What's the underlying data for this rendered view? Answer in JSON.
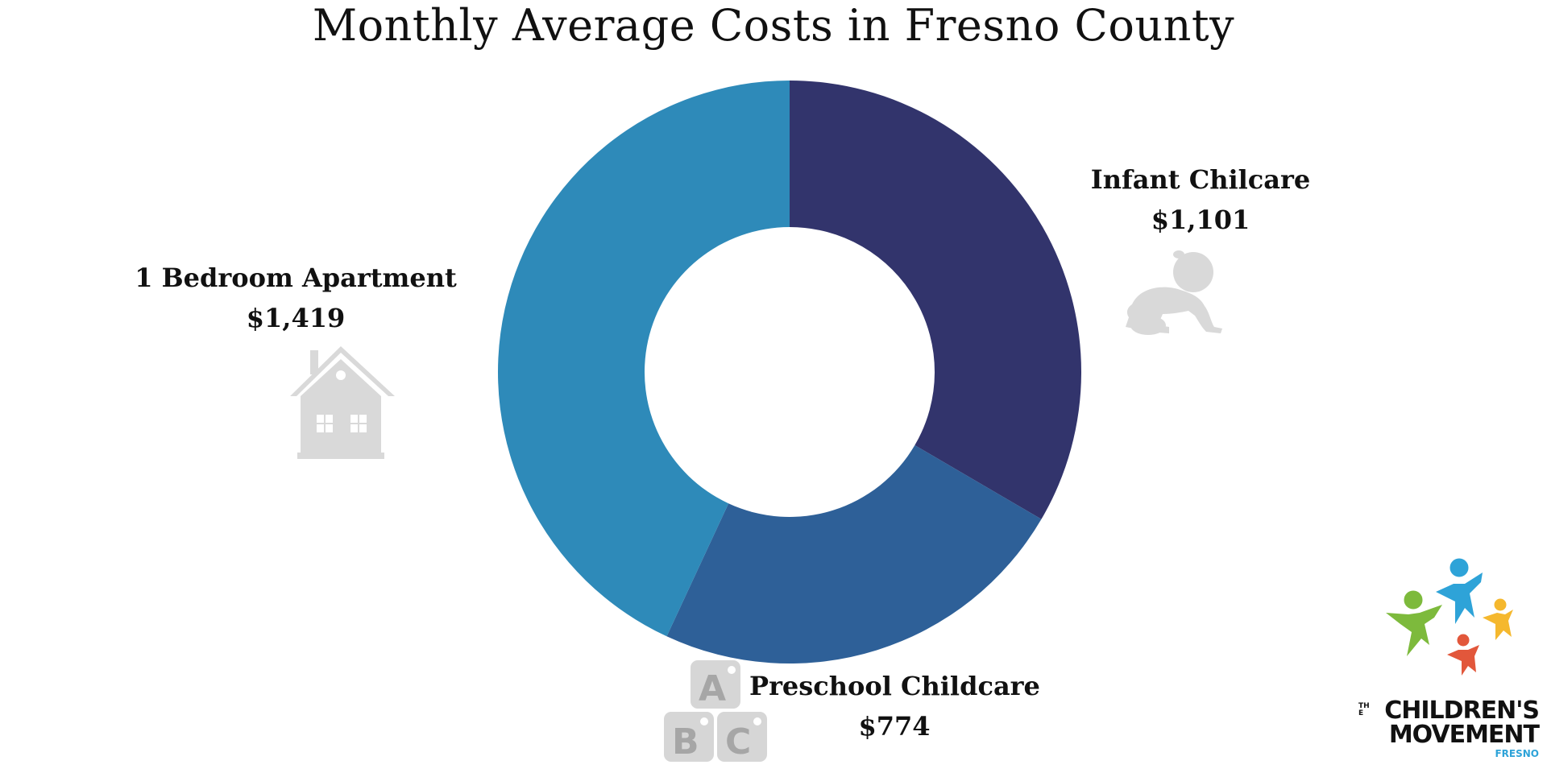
{
  "title": "Monthly Average Costs in Fresno County",
  "chart_data": {
    "type": "pie",
    "donut": true,
    "title": "Monthly Average Costs in Fresno County",
    "slices": [
      {
        "name": "Infant Chilcare",
        "value": 1101,
        "value_label": "$1,101",
        "color": "#32346c",
        "icon": "crawling-baby-icon"
      },
      {
        "name": "Preschool Childcare",
        "value": 774,
        "value_label": "$774",
        "color": "#2e6098",
        "icon": "abc-blocks-icon"
      },
      {
        "name": "1 Bedroom Apartment",
        "value": 1419,
        "value_label": "$1,419",
        "color": "#2e8ab9",
        "icon": "house-icon"
      }
    ],
    "start": "12 o'clock",
    "direction": "clockwise",
    "legend": "none"
  },
  "logo": {
    "the": "THE",
    "line1": "CHILDREN'S",
    "line2": "MOVEMENT",
    "line3": "FRESNO",
    "figure_colors": [
      "#2ea3d8",
      "#7dba3c",
      "#f5b82e",
      "#e2573b"
    ]
  }
}
